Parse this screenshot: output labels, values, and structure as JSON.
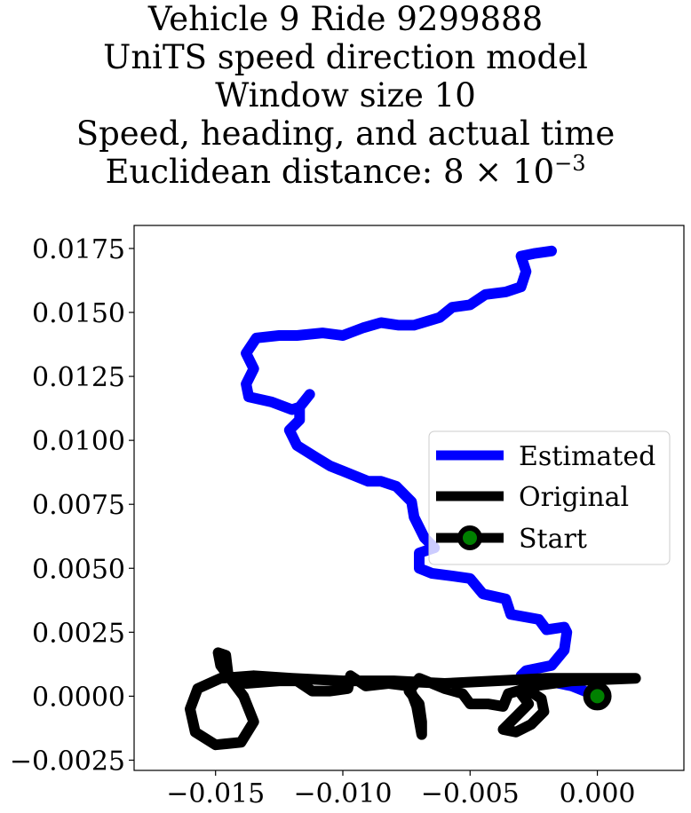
{
  "title": {
    "line1": "Vehicle 9 Ride 9299888",
    "line2": "UniTS speed direction model",
    "line3": "Window size 10",
    "line4": "Speed, heading, and actual time",
    "line5_prefix": "Euclidean distance: 8 × 10",
    "line5_exponent": "−3"
  },
  "chart_data": {
    "type": "line",
    "xlim": [
      -0.0182,
      0.0034
    ],
    "ylim": [
      -0.0029,
      0.0184
    ],
    "x_ticks": [
      -0.015,
      -0.01,
      -0.005,
      0.0
    ],
    "x_tick_labels": [
      "−0.015",
      "−0.010",
      "−0.005",
      "0.000"
    ],
    "y_ticks": [
      -0.0025,
      0.0,
      0.0025,
      0.005,
      0.0075,
      0.01,
      0.0125,
      0.015,
      0.0175
    ],
    "y_tick_labels": [
      "−0.0025",
      "0.0000",
      "0.0025",
      "0.0050",
      "0.0075",
      "0.0100",
      "0.0125",
      "0.0150",
      "0.0175"
    ],
    "grid": false,
    "legend_position": "center-right",
    "series": [
      {
        "name": "Estimated",
        "color": "#0000ff",
        "points": [
          [
            0.0,
            0.0
          ],
          [
            -0.001,
            0.0004
          ],
          [
            -0.002,
            0.0006
          ],
          [
            -0.003,
            0.0008
          ],
          [
            -0.0028,
            0.001
          ],
          [
            -0.0018,
            0.0012
          ],
          [
            -0.0013,
            0.0018
          ],
          [
            -0.0012,
            0.0025
          ],
          [
            -0.0013,
            0.0027
          ],
          [
            -0.002,
            0.0026
          ],
          [
            -0.0023,
            0.003
          ],
          [
            -0.0034,
            0.0032
          ],
          [
            -0.0036,
            0.0038
          ],
          [
            -0.0045,
            0.004
          ],
          [
            -0.005,
            0.0046
          ],
          [
            -0.0057,
            0.0047
          ],
          [
            -0.0065,
            0.0048
          ],
          [
            -0.007,
            0.005
          ],
          [
            -0.007,
            0.0056
          ],
          [
            -0.0064,
            0.0058
          ],
          [
            -0.0068,
            0.0062
          ],
          [
            -0.0072,
            0.007
          ],
          [
            -0.0073,
            0.0076
          ],
          [
            -0.0079,
            0.0082
          ],
          [
            -0.0085,
            0.0084
          ],
          [
            -0.009,
            0.0084
          ],
          [
            -0.01,
            0.0088
          ],
          [
            -0.0105,
            0.009
          ],
          [
            -0.011,
            0.0093
          ],
          [
            -0.0118,
            0.0098
          ],
          [
            -0.0121,
            0.0104
          ],
          [
            -0.0117,
            0.0108
          ],
          [
            -0.0117,
            0.0113
          ],
          [
            -0.0113,
            0.0118
          ],
          [
            -0.0117,
            0.0113
          ],
          [
            -0.012,
            0.0112
          ],
          [
            -0.0128,
            0.0115
          ],
          [
            -0.0137,
            0.0117
          ],
          [
            -0.0138,
            0.0122
          ],
          [
            -0.0135,
            0.0128
          ],
          [
            -0.0138,
            0.0134
          ],
          [
            -0.0134,
            0.014
          ],
          [
            -0.0125,
            0.0141
          ],
          [
            -0.0118,
            0.0141
          ],
          [
            -0.0108,
            0.0142
          ],
          [
            -0.01,
            0.0141
          ],
          [
            -0.0092,
            0.0144
          ],
          [
            -0.0085,
            0.0146
          ],
          [
            -0.0078,
            0.0145
          ],
          [
            -0.0072,
            0.0145
          ],
          [
            -0.0062,
            0.0148
          ],
          [
            -0.0057,
            0.0152
          ],
          [
            -0.005,
            0.0153
          ],
          [
            -0.0044,
            0.0157
          ],
          [
            -0.0036,
            0.0158
          ],
          [
            -0.003,
            0.016
          ],
          [
            -0.0028,
            0.0166
          ],
          [
            -0.003,
            0.0172
          ],
          [
            -0.0025,
            0.0173
          ],
          [
            -0.0018,
            0.0174
          ]
        ]
      },
      {
        "name": "Original",
        "color": "#000000",
        "points": [
          [
            0.0015,
            0.0007
          ],
          [
            -0.001,
            0.0006
          ],
          [
            -0.0025,
            0.0004
          ],
          [
            -0.003,
            0.0001
          ],
          [
            -0.0027,
            -0.0003
          ],
          [
            -0.0032,
            -0.0008
          ],
          [
            -0.0037,
            -0.0013
          ],
          [
            -0.0032,
            -0.0014
          ],
          [
            -0.0026,
            -0.0011
          ],
          [
            -0.0021,
            -0.0006
          ],
          [
            -0.0022,
            -0.0001
          ],
          [
            -0.0028,
            0.0003
          ],
          [
            -0.0035,
            0.0001
          ],
          [
            -0.0037,
            -0.0004
          ],
          [
            -0.0043,
            -0.0003
          ],
          [
            -0.005,
            -0.0003
          ],
          [
            -0.0053,
            0.0001
          ],
          [
            -0.006,
            0.0003
          ],
          [
            -0.0065,
            0.0005
          ],
          [
            -0.007,
            0.0007
          ],
          [
            -0.0074,
            0.0002
          ],
          [
            -0.007,
            -0.0003
          ],
          [
            -0.0069,
            -0.001
          ],
          [
            -0.0069,
            -0.0015
          ],
          [
            -0.0071,
            -0.0004
          ],
          [
            -0.0074,
            0.0004
          ],
          [
            -0.0082,
            0.0005
          ],
          [
            -0.0091,
            0.0004
          ],
          [
            -0.0097,
            0.0008
          ],
          [
            -0.0098,
            0.0003
          ],
          [
            -0.0105,
            0.0002
          ],
          [
            -0.0112,
            0.0002
          ],
          [
            -0.0118,
            0.0006
          ],
          [
            -0.0125,
            0.0006
          ],
          [
            -0.0138,
            0.0005
          ],
          [
            -0.0145,
            0.0008
          ],
          [
            -0.0148,
            0.0012
          ],
          [
            -0.0149,
            0.0017
          ],
          [
            -0.0146,
            0.0016
          ],
          [
            -0.0145,
            0.0008
          ],
          [
            -0.0139,
            0.0
          ],
          [
            -0.0135,
            -0.001
          ],
          [
            -0.014,
            -0.0018
          ],
          [
            -0.015,
            -0.0019
          ],
          [
            -0.0158,
            -0.0014
          ],
          [
            -0.016,
            -0.0005
          ],
          [
            -0.0157,
            0.0003
          ],
          [
            -0.0148,
            0.0007
          ],
          [
            -0.0135,
            0.0008
          ],
          [
            -0.012,
            0.0007
          ],
          [
            -0.01,
            0.0006
          ],
          [
            -0.008,
            0.0006
          ],
          [
            -0.006,
            0.0005
          ],
          [
            -0.004,
            0.0006
          ],
          [
            -0.002,
            0.0007
          ],
          [
            0.0,
            0.0007
          ],
          [
            0.0015,
            0.0007
          ]
        ]
      }
    ],
    "start_marker": {
      "name": "Start",
      "x": 0.0,
      "y": 0.0,
      "fill": "#008000",
      "edge": "#000000"
    }
  }
}
